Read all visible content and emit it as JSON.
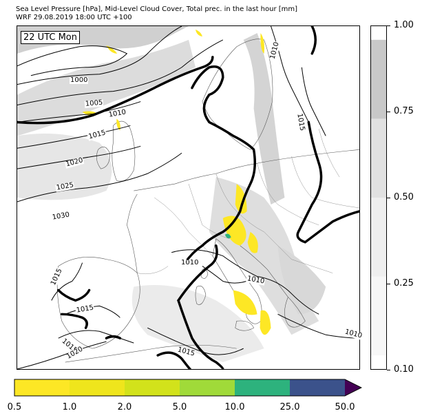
{
  "title": {
    "line1": "Sea Level Pressure [hPa], Mid-Level Cloud Cover, Total prec. in the last hour [mm]",
    "line2": "WRF 29.08.2019 18:00 UTC +100"
  },
  "time_label": "22 UTC Mon",
  "isobar_labels": [
    "1000",
    "1005",
    "1010",
    "1015",
    "1020",
    "1025",
    "1030",
    "1010",
    "1015",
    "1010",
    "1010",
    "1015",
    "1015",
    "1015",
    "1020",
    "1015",
    "1010"
  ],
  "cloud_colorbar": {
    "ticks": [
      "0.10",
      "0.25",
      "0.50",
      "0.75",
      "1.00"
    ],
    "bands": [
      {
        "from": 0.1,
        "to": 0.25,
        "color": "#f7f7f7"
      },
      {
        "from": 0.25,
        "to": 0.5,
        "color": "#efefef"
      },
      {
        "from": 0.5,
        "to": 0.75,
        "color": "#e1e1e1"
      },
      {
        "from": 0.75,
        "to": 1.0,
        "color": "#c8c8c8"
      }
    ]
  },
  "precip_colorbar": {
    "ticks": [
      "0.5",
      "1.0",
      "2.0",
      "5.0",
      "10.0",
      "25.0",
      "50.0"
    ],
    "colors": [
      "#fde725",
      "#efe51c",
      "#d2e21b",
      "#a0da39",
      "#2db27d",
      "#3b528b",
      "#440154"
    ]
  },
  "colors": {
    "isobar": "#000000",
    "front": "#000000",
    "coast": "#555555",
    "cloud_light": "#e8e8e8",
    "cloud_dark": "#c8c8c8",
    "precip": "#fde725"
  }
}
